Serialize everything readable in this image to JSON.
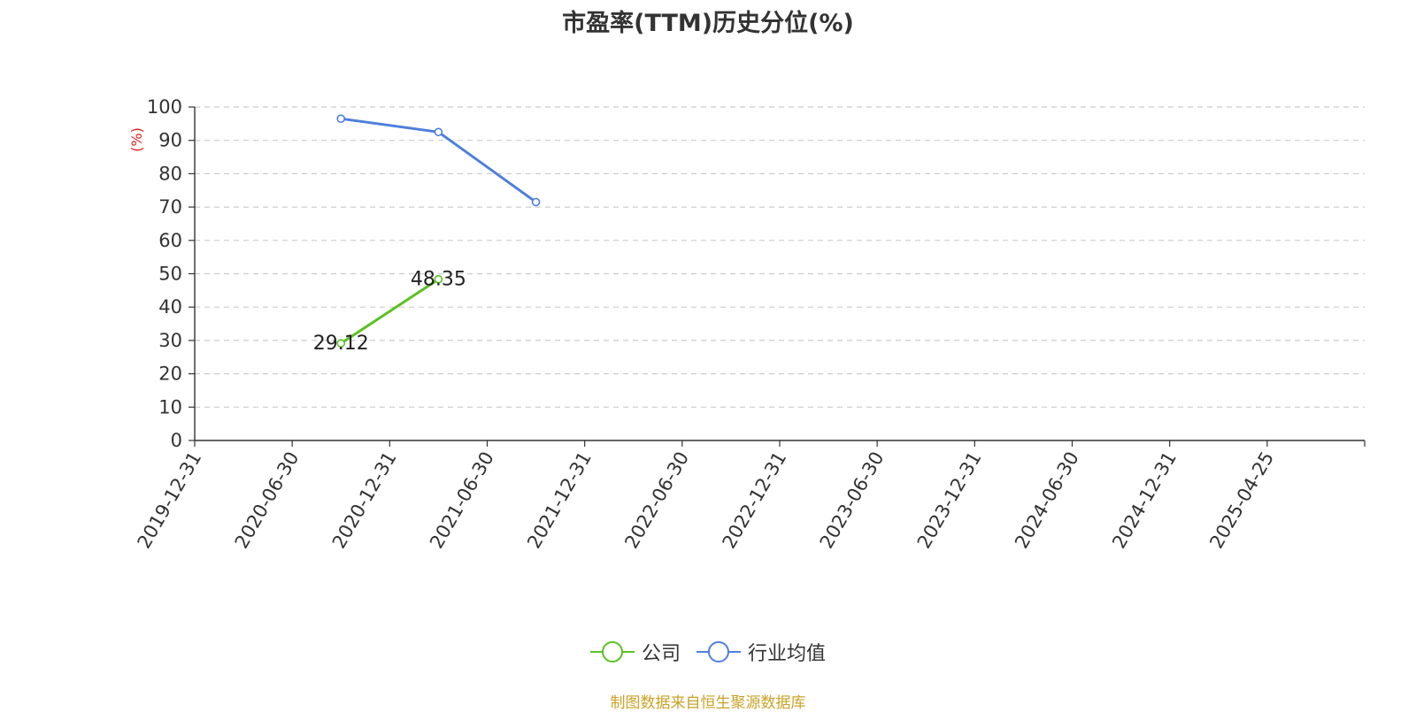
{
  "chart_data": {
    "type": "line",
    "title": "市盈率(TTM)历史分位(%)",
    "ylabel": "(%)",
    "ylim": [
      0,
      100
    ],
    "yticks": [
      "0",
      "10",
      "20",
      "30",
      "40",
      "50",
      "60",
      "70",
      "80",
      "90",
      "100"
    ],
    "categories": [
      "2019-12-31",
      "2020-06-30",
      "2020-12-31",
      "2021-06-30",
      "2021-12-31",
      "2022-06-30",
      "2022-12-31",
      "2023-06-30",
      "2023-12-31",
      "2024-06-30",
      "2024-12-31",
      "2025-04-25"
    ],
    "grid": true,
    "legend_position": "bottom",
    "series": [
      {
        "name": "公司",
        "color": "#5ac123",
        "show_labels": true,
        "points": [
          {
            "x": "2020-06-30",
            "y": 29.12,
            "label": "29.12"
          },
          {
            "x": "2020-12-31",
            "y": 48.35,
            "label": "48.35"
          }
        ]
      },
      {
        "name": "行业均值",
        "color": "#4e7fdb",
        "show_labels": false,
        "points": [
          {
            "x": "2020-06-30",
            "y": 96.5
          },
          {
            "x": "2020-12-31",
            "y": 92.5
          },
          {
            "x": "2021-06-30",
            "y": 71.5
          }
        ]
      }
    ],
    "source": "制图数据来自恒生聚源数据库"
  }
}
